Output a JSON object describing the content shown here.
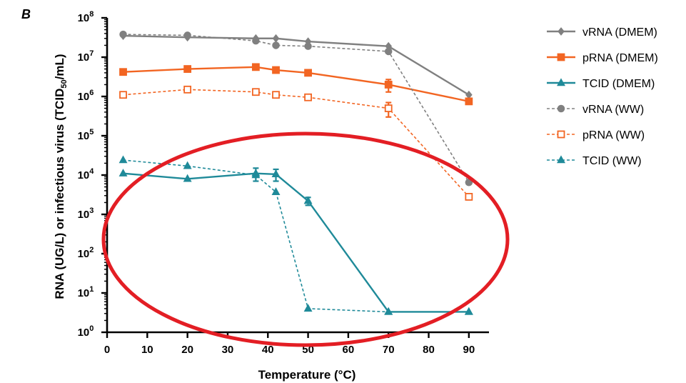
{
  "panel_label": "B",
  "chart_data": {
    "type": "line",
    "xlabel": "Temperature (°C)",
    "ylabel": {
      "base": "RNA (UG/L) or infectious virus (TCID",
      "subscript": "50",
      "tail": "/mL)"
    },
    "xlim": [
      0,
      95
    ],
    "ylim": [
      1,
      100000000
    ],
    "yscale": "log",
    "xticks": [
      "0",
      "10",
      "20",
      "30",
      "40",
      "50",
      "60",
      "70",
      "80",
      "90"
    ],
    "yticks": [
      {
        "base": "10",
        "exp": "0"
      },
      {
        "base": "10",
        "exp": "1"
      },
      {
        "base": "10",
        "exp": "2"
      },
      {
        "base": "10",
        "exp": "3"
      },
      {
        "base": "10",
        "exp": "4"
      },
      {
        "base": "10",
        "exp": "5"
      },
      {
        "base": "10",
        "exp": "6"
      },
      {
        "base": "10",
        "exp": "7"
      },
      {
        "base": "10",
        "exp": "8"
      }
    ],
    "grid": false,
    "legend_position": "right",
    "series": [
      {
        "name": "vRNA (DMEM)",
        "color": "#808080",
        "dashed": false,
        "marker": "diamond",
        "filled": true,
        "x": [
          4,
          20,
          37,
          42,
          50,
          70,
          90
        ],
        "y": [
          35000000,
          32000000,
          30000000,
          30000000,
          25000000,
          19000000,
          1100000
        ]
      },
      {
        "name": "pRNA (DMEM)",
        "color": "#f26522",
        "dashed": false,
        "marker": "square",
        "filled": true,
        "x": [
          4,
          20,
          37,
          42,
          50,
          70,
          90
        ],
        "y": [
          4200000,
          5000000,
          5600000,
          4700000,
          4000000,
          2000000,
          750000
        ],
        "err": [
          0,
          0,
          0,
          0,
          0,
          700000,
          0
        ]
      },
      {
        "name": "TCID (DMEM)",
        "color": "#1f8a99",
        "dashed": false,
        "marker": "triangle",
        "filled": true,
        "x": [
          4,
          20,
          37,
          42,
          50,
          70,
          90
        ],
        "y": [
          11000,
          8000,
          11000,
          10500,
          2200,
          3.3,
          3.3
        ],
        "err": [
          0,
          0,
          4000,
          3500,
          500,
          0,
          0
        ]
      },
      {
        "name": "vRNA (WW)",
        "color": "#808080",
        "dashed": true,
        "marker": "circle",
        "filled": true,
        "x": [
          4,
          20,
          37,
          42,
          50,
          70,
          90
        ],
        "y": [
          38000000,
          36000000,
          26000000,
          20000000,
          19000000,
          14000000,
          6500
        ]
      },
      {
        "name": "pRNA (WW)",
        "color": "#f26522",
        "dashed": true,
        "marker": "square",
        "filled": false,
        "x": [
          4,
          20,
          37,
          42,
          50,
          70,
          90
        ],
        "y": [
          1100000,
          1500000,
          1300000,
          1100000,
          950000,
          500000,
          2800
        ],
        "err": [
          0,
          0,
          0,
          0,
          0,
          200000,
          0
        ]
      },
      {
        "name": "TCID (WW)",
        "color": "#1f8a99",
        "dashed": true,
        "marker": "triangle",
        "filled": true,
        "x": [
          4,
          20,
          37,
          42,
          50,
          70,
          90
        ],
        "y": [
          24000,
          17000,
          10000,
          3700,
          4,
          3.3,
          3.3
        ]
      }
    ],
    "annotation": {
      "type": "ellipse",
      "color": "#e31e24"
    }
  }
}
